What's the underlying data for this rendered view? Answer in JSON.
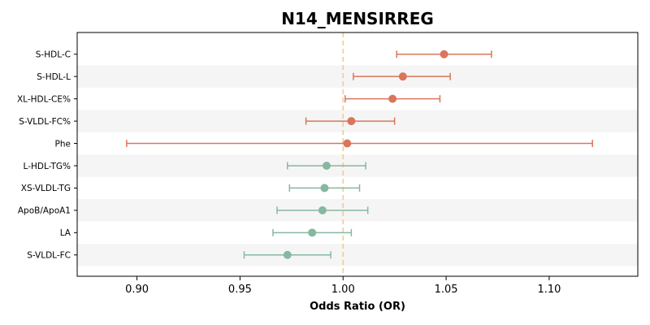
{
  "chart_data": {
    "type": "forest",
    "title": "N14_MENSIRREG",
    "xlabel": "Odds Ratio (OR)",
    "xlim": [
      0.871,
      1.143
    ],
    "xticks": [
      0.9,
      0.95,
      1.0,
      1.05,
      1.1
    ],
    "xtick_labels": [
      "0.90",
      "0.95",
      "1.00",
      "1.05",
      "1.10"
    ],
    "reference_line": 1.0,
    "reference_color": "#f5c98b",
    "row_stripe_color": "#f5f5f5",
    "rows": [
      {
        "label": "S-HDL-C",
        "or": 1.049,
        "lower": 1.026,
        "upper": 1.072,
        "color": "#d9765b"
      },
      {
        "label": "S-HDL-L",
        "or": 1.029,
        "lower": 1.005,
        "upper": 1.052,
        "color": "#d9765b"
      },
      {
        "label": "XL-HDL-CE%",
        "or": 1.024,
        "lower": 1.001,
        "upper": 1.047,
        "color": "#d9765b"
      },
      {
        "label": "S-VLDL-FC%",
        "or": 1.004,
        "lower": 0.982,
        "upper": 1.025,
        "color": "#d9765b"
      },
      {
        "label": "Phe",
        "or": 1.002,
        "lower": 0.895,
        "upper": 1.121,
        "color": "#d9765b"
      },
      {
        "label": "L-HDL-TG%",
        "or": 0.992,
        "lower": 0.973,
        "upper": 1.011,
        "color": "#86b8a0"
      },
      {
        "label": "XS-VLDL-TG",
        "or": 0.991,
        "lower": 0.974,
        "upper": 1.008,
        "color": "#86b8a0"
      },
      {
        "label": "ApoB/ApoA1",
        "or": 0.99,
        "lower": 0.968,
        "upper": 1.012,
        "color": "#86b8a0"
      },
      {
        "label": "LA",
        "or": 0.985,
        "lower": 0.966,
        "upper": 1.004,
        "color": "#86b8a0"
      },
      {
        "label": "S-VLDL-FC",
        "or": 0.973,
        "lower": 0.952,
        "upper": 0.994,
        "color": "#86b8a0"
      }
    ]
  }
}
